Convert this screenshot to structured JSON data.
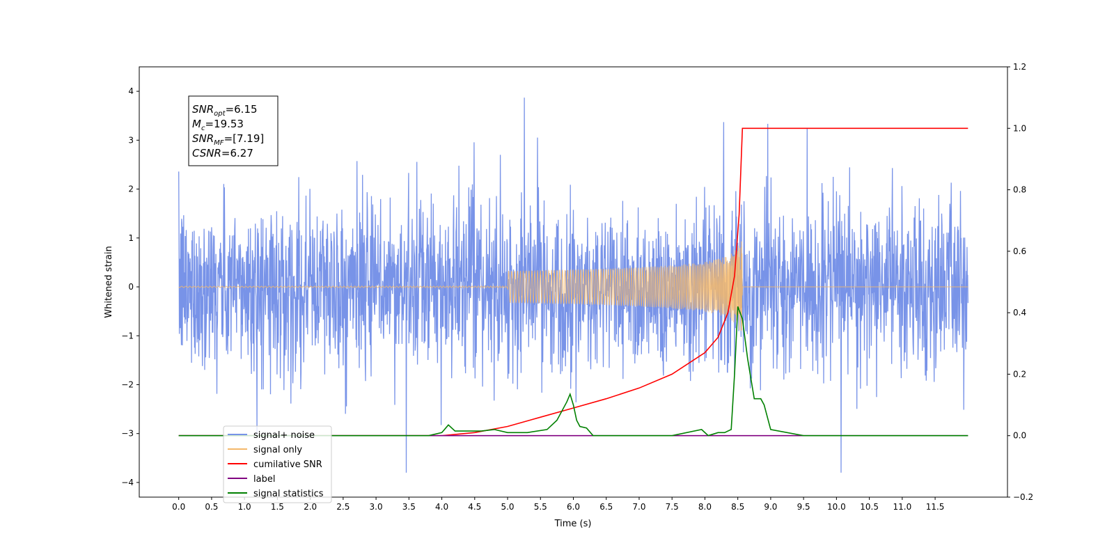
{
  "chart_data": {
    "type": "line",
    "xlabel": "Time (s)",
    "ylabel": "Whitened strain",
    "xlim": [
      -0.6,
      12.6
    ],
    "ylim": [
      -4.3,
      4.5
    ],
    "ylim_right": [
      -0.2,
      1.2
    ],
    "x_ticks": [
      "0.0",
      "0.5",
      "1.0",
      "1.5",
      "2.0",
      "2.5",
      "3.0",
      "3.5",
      "4.0",
      "4.5",
      "5.0",
      "5.5",
      "6.0",
      "6.5",
      "7.0",
      "7.5",
      "8.0",
      "8.5",
      "9.0",
      "9.5",
      "10.0",
      "10.5",
      "11.0",
      "11.5"
    ],
    "y_ticks": [
      "4",
      "3",
      "2",
      "1",
      "0",
      "−1",
      "−2",
      "−3",
      "−4"
    ],
    "y_ticks_right": [
      "1.2",
      "1.0",
      "0.8",
      "0.6",
      "0.4",
      "0.2",
      "0.0",
      "−0.2"
    ],
    "grid": false,
    "legend_position": "lower-left",
    "annotation": [
      {
        "main": "SNR",
        "sub": "opt",
        "value": "=6.15"
      },
      {
        "main": "M",
        "sub": "c",
        "value": "=19.53"
      },
      {
        "main": "SNR",
        "sub": "MF",
        "value": "=[7.19]"
      },
      {
        "main": "CSNR",
        "sub": "",
        "value": "=6.27"
      }
    ],
    "series": [
      {
        "name": "signal+ noise",
        "color": "#7893e8",
        "axis": "left",
        "description_range": [
          -3.8,
          4.15
        ],
        "t_range": [
          0.0,
          12.0
        ]
      },
      {
        "name": "signal only",
        "color": "#f4b86a",
        "axis": "left",
        "merger_time": 8.57,
        "peak_amplitude": 1.2
      },
      {
        "name": "cumilative SNR",
        "color": "#ff0000",
        "axis": "right",
        "x": [
          0.0,
          4.0,
          4.5,
          5.0,
          5.5,
          6.0,
          6.5,
          7.0,
          7.5,
          8.0,
          8.2,
          8.35,
          8.45,
          8.52,
          8.57,
          9.0,
          12.0
        ],
        "y": [
          0.0,
          0.0,
          0.01,
          0.03,
          0.06,
          0.09,
          0.12,
          0.155,
          0.2,
          0.27,
          0.32,
          0.4,
          0.52,
          0.72,
          1.0,
          1.0,
          1.0
        ]
      },
      {
        "name": "label",
        "color": "#800080",
        "axis": "right",
        "x": [
          0.0,
          12.0
        ],
        "y": [
          0.0,
          0.0
        ]
      },
      {
        "name": "signal statistics",
        "color": "#008000",
        "axis": "right",
        "x": [
          0.0,
          3.8,
          4.0,
          4.1,
          4.2,
          4.4,
          4.6,
          4.8,
          5.0,
          5.3,
          5.6,
          5.75,
          5.9,
          5.95,
          6.0,
          6.05,
          6.1,
          6.2,
          6.3,
          6.5,
          7.5,
          7.95,
          8.05,
          8.2,
          8.3,
          8.4,
          8.45,
          8.5,
          8.57,
          8.65,
          8.75,
          8.85,
          8.9,
          9.0,
          9.5,
          12.0
        ],
        "y": [
          0.0,
          0.0,
          0.01,
          0.035,
          0.015,
          0.015,
          0.015,
          0.02,
          0.01,
          0.01,
          0.02,
          0.05,
          0.11,
          0.135,
          0.1,
          0.05,
          0.03,
          0.025,
          0.0,
          0.0,
          0.0,
          0.02,
          0.0,
          0.01,
          0.01,
          0.02,
          0.2,
          0.42,
          0.38,
          0.25,
          0.12,
          0.12,
          0.1,
          0.02,
          0.0,
          0.0
        ]
      }
    ]
  }
}
